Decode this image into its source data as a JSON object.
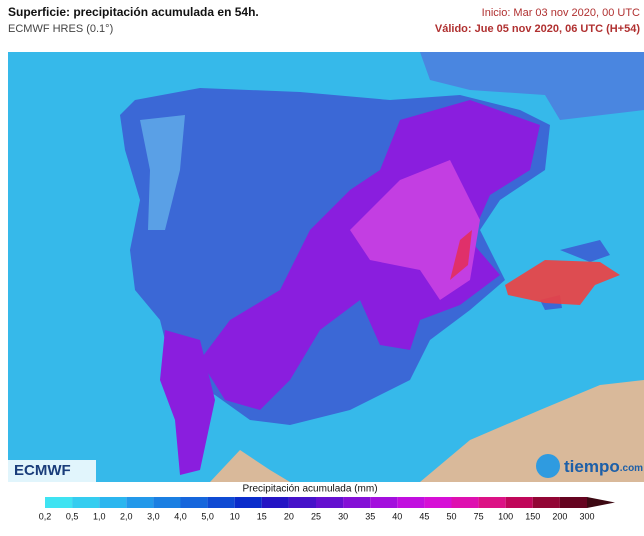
{
  "header": {
    "title": "Superficie: precipitación acumulada en 54h.",
    "model": "ECMWF HRES (0.1°)",
    "start": "Inicio: Mar 03 nov 2020, 00 UTC",
    "valid": "Válido: Jue 05 nov 2020, 06 UTC (H+54)"
  },
  "logos": {
    "left": "ECMWF",
    "right_name": "tiempo",
    "right_suffix": ".com"
  },
  "legend": {
    "title": "Precipitación acumulada (mm)",
    "labels": [
      "0,2",
      "0,5",
      "1,0",
      "2,0",
      "3,0",
      "4,0",
      "5,0",
      "10",
      "15",
      "20",
      "25",
      "30",
      "35",
      "40",
      "45",
      "50",
      "75",
      "100",
      "150",
      "200",
      "300"
    ],
    "colors": [
      "#3fe3f2",
      "#35cdf0",
      "#2bb6ef",
      "#2399ea",
      "#1b7fe2",
      "#1666dc",
      "#0f4ad3",
      "#0a2ccb",
      "#2414c4",
      "#4512c9",
      "#6410cf",
      "#8410d6",
      "#a30fdd",
      "#c10fdf",
      "#d60fd6",
      "#de10b0",
      "#dc1285",
      "#c0075a",
      "#920635",
      "#650420"
    ],
    "arrow_color": "#3c0812"
  }
}
